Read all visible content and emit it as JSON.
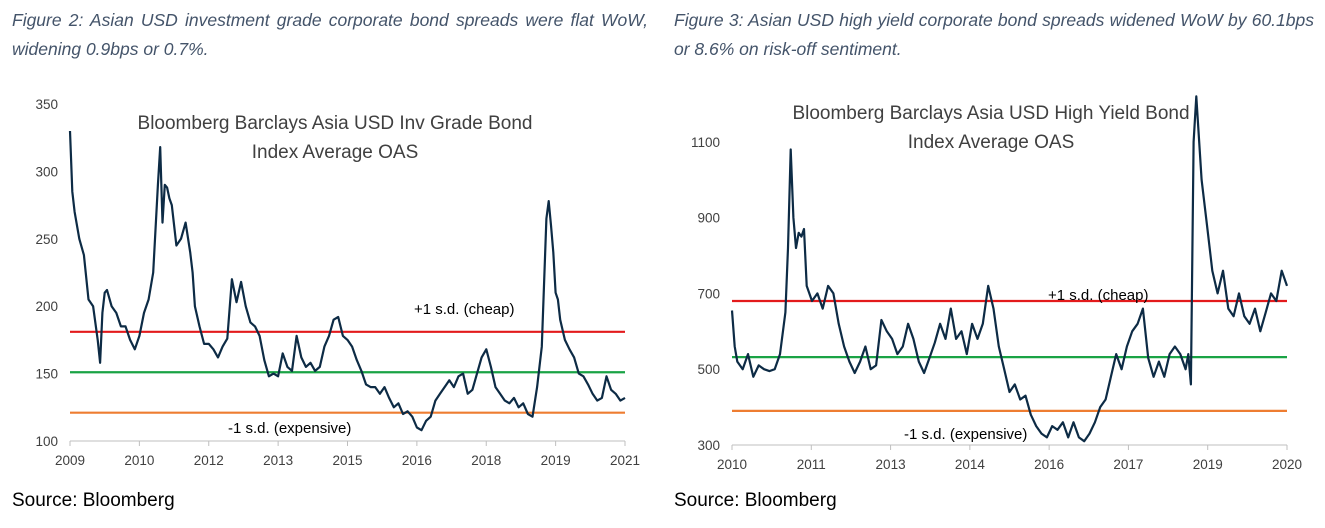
{
  "figures": [
    {
      "caption": "Figure 2: Asian USD investment grade corporate bond spreads were flat WoW, widening 0.9bps or 0.7%.",
      "source": "Source: Bloomberg"
    },
    {
      "caption": "Figure 3: Asian USD high yield corporate bond spreads widened WoW by 60.1bps or 8.6% on risk-off sentiment.",
      "source": "Source: Bloomberg"
    }
  ],
  "chart_data": [
    {
      "type": "line",
      "title": [
        "Bloomberg  Barclays Asia USD Inv Grade Bond",
        "Index Average OAS"
      ],
      "xlabel": "",
      "ylabel": "",
      "xlim": [
        2009.0,
        2021.0
      ],
      "ylim": [
        100,
        350
      ],
      "x_ticks": [
        2009.0,
        2010.33,
        2011.67,
        2013.0,
        2014.33,
        2015.67,
        2017.0,
        2018.33,
        2019.67,
        2021.0
      ],
      "x_tick_labels": [
        "2009",
        "2010",
        "2012",
        "2013",
        "2015",
        "2016",
        "2018",
        "2019",
        "2021"
      ],
      "x_tick_label_positions": [
        2009.0,
        2010.33,
        2011.67,
        2013.0,
        2014.33,
        2015.67,
        2017.0,
        2018.33,
        2019.67
      ],
      "y_ticks": [
        100,
        150,
        200,
        250,
        300,
        350
      ],
      "grid": false,
      "line_color": "#0d2b45",
      "reference_lines": [
        {
          "value": 181,
          "color": "#e31a1c",
          "label": "+1 s.d. (cheap)"
        },
        {
          "value": 151,
          "color": "#1aa345",
          "label": ""
        },
        {
          "value": 121,
          "color": "#ee7d31",
          "label": "-1 s.d. (expensive)"
        }
      ],
      "series": [
        {
          "x": [
            2009.0,
            2009.05,
            2009.1,
            2009.2,
            2009.3,
            2009.4,
            2009.5,
            2009.6,
            2009.65,
            2009.7,
            2009.75,
            2009.8,
            2009.9,
            2010.0,
            2010.1,
            2010.2,
            2010.3,
            2010.4,
            2010.5,
            2010.6,
            2010.7,
            2010.8,
            2010.9,
            2010.95,
            2011.0,
            2011.05,
            2011.1,
            2011.15,
            2011.2,
            2011.3,
            2011.4,
            2011.5,
            2011.6,
            2011.65,
            2011.7,
            2011.8,
            2011.9,
            2012.0,
            2012.1,
            2012.2,
            2012.3,
            2012.4,
            2012.5,
            2012.6,
            2012.7,
            2012.8,
            2012.9,
            2013.0,
            2013.1,
            2013.2,
            2013.3,
            2013.4,
            2013.5,
            2013.6,
            2013.7,
            2013.8,
            2013.9,
            2014.0,
            2014.1,
            2014.2,
            2014.3,
            2014.4,
            2014.5,
            2014.6,
            2014.7,
            2014.8,
            2014.9,
            2015.0,
            2015.1,
            2015.2,
            2015.3,
            2015.4,
            2015.5,
            2015.6,
            2015.7,
            2015.8,
            2015.9,
            2016.0,
            2016.1,
            2016.2,
            2016.3,
            2016.4,
            2016.5,
            2016.6,
            2016.7,
            2016.8,
            2016.9,
            2017.0,
            2017.1,
            2017.2,
            2017.3,
            2017.4,
            2017.5,
            2017.6,
            2017.7,
            2017.8,
            2017.9,
            2018.0,
            2018.1,
            2018.2,
            2018.3,
            2018.4,
            2018.5,
            2018.6,
            2018.7,
            2018.8,
            2018.9,
            2019.0,
            2019.1,
            2019.2,
            2019.3,
            2019.35,
            2019.4,
            2019.45,
            2019.5,
            2019.55,
            2019.6,
            2019.7,
            2019.8,
            2019.9,
            2020.0,
            2020.1,
            2020.2,
            2020.3,
            2020.4,
            2020.5,
            2020.6,
            2020.7,
            2020.8,
            2020.9,
            2021.0
          ],
          "values": [
            330,
            285,
            270,
            250,
            238,
            205,
            200,
            175,
            158,
            195,
            210,
            212,
            200,
            195,
            185,
            185,
            175,
            168,
            178,
            195,
            205,
            225,
            290,
            318,
            262,
            290,
            288,
            280,
            275,
            245,
            250,
            262,
            240,
            225,
            200,
            185,
            172,
            172,
            168,
            162,
            170,
            176,
            220,
            203,
            218,
            200,
            188,
            185,
            178,
            160,
            148,
            150,
            148,
            165,
            155,
            152,
            178,
            162,
            155,
            158,
            152,
            155,
            170,
            178,
            190,
            192,
            178,
            175,
            170,
            160,
            152,
            142,
            140,
            140,
            135,
            140,
            132,
            125,
            128,
            120,
            122,
            118,
            110,
            108,
            115,
            118,
            130,
            135,
            140,
            145,
            140,
            148,
            150,
            135,
            138,
            150,
            162,
            168,
            155,
            140,
            135,
            130,
            128,
            132,
            125,
            128,
            120,
            118,
            140,
            170,
            265,
            278,
            260,
            240,
            210,
            205,
            190,
            175,
            168,
            162,
            150,
            148,
            142,
            135,
            130,
            132,
            148,
            138,
            135,
            130,
            132
          ]
        }
      ]
    },
    {
      "type": "line",
      "title": [
        "Bloomberg  Barclays Asia USD High Yield Bond",
        "Index Average OAS"
      ],
      "xlabel": "",
      "ylabel": "",
      "xlim": [
        2010.0,
        2020.4
      ],
      "ylim": [
        300,
        1200
      ],
      "x_tick_labels": [
        "2010",
        "2011",
        "2013",
        "2014",
        "2016",
        "2017",
        "2019",
        "2020"
      ],
      "x_tick_label_positions": [
        2010.0,
        2011.0,
        2012.0,
        2013.0,
        2014.0,
        2015.0,
        2016.0,
        2017.0
      ],
      "y_ticks": [
        300,
        500,
        700,
        900,
        1100
      ],
      "grid": false,
      "line_color": "#0d2b45",
      "reference_lines": [
        {
          "value": 680,
          "color": "#e31a1c",
          "label": "+1 s.d. (cheap)"
        },
        {
          "value": 532,
          "color": "#1aa345",
          "label": ""
        },
        {
          "value": 390,
          "color": "#ee7d31",
          "label": "-1 s.d. (expensive)"
        }
      ],
      "series": [
        {
          "x": [
            2010.0,
            2010.05,
            2010.1,
            2010.2,
            2010.3,
            2010.4,
            2010.5,
            2010.6,
            2010.7,
            2010.8,
            2010.9,
            2011.0,
            2011.05,
            2011.1,
            2011.15,
            2011.2,
            2011.25,
            2011.3,
            2011.35,
            2011.4,
            2011.5,
            2011.6,
            2011.7,
            2011.8,
            2011.9,
            2012.0,
            2012.1,
            2012.2,
            2012.3,
            2012.4,
            2012.5,
            2012.6,
            2012.7,
            2012.8,
            2012.9,
            2013.0,
            2013.1,
            2013.2,
            2013.3,
            2013.4,
            2013.5,
            2013.6,
            2013.7,
            2013.8,
            2013.9,
            2014.0,
            2014.1,
            2014.2,
            2014.3,
            2014.4,
            2014.5,
            2014.6,
            2014.7,
            2014.8,
            2014.9,
            2015.0,
            2015.1,
            2015.2,
            2015.3,
            2015.4,
            2015.5,
            2015.6,
            2015.7,
            2015.8,
            2015.9,
            2016.0,
            2016.1,
            2016.2,
            2016.3,
            2016.4,
            2016.5,
            2016.6,
            2016.7,
            2016.8,
            2016.9,
            2017.0,
            2017.1,
            2017.2,
            2017.3,
            2017.4,
            2017.5,
            2017.6,
            2017.7,
            2017.8,
            2017.9,
            2018.0,
            2018.1,
            2018.2,
            2018.3,
            2018.4,
            2018.5,
            2018.55,
            2018.6,
            2018.65,
            2018.7,
            2018.8,
            2018.9,
            2019.0,
            2019.1,
            2019.2,
            2019.3,
            2019.4,
            2019.5,
            2019.6,
            2019.7,
            2019.8,
            2019.9,
            2020.0,
            2020.1,
            2020.2,
            2020.3,
            2020.4
          ],
          "values": [
            655,
            560,
            520,
            500,
            540,
            480,
            510,
            500,
            495,
            500,
            540,
            650,
            820,
            1080,
            900,
            820,
            860,
            850,
            870,
            720,
            680,
            700,
            660,
            720,
            700,
            620,
            560,
            520,
            490,
            520,
            560,
            500,
            510,
            630,
            600,
            580,
            540,
            560,
            620,
            580,
            520,
            490,
            530,
            570,
            620,
            580,
            660,
            580,
            600,
            540,
            620,
            580,
            620,
            720,
            660,
            560,
            500,
            440,
            460,
            420,
            430,
            380,
            350,
            330,
            320,
            350,
            340,
            360,
            320,
            360,
            320,
            310,
            330,
            360,
            400,
            420,
            480,
            540,
            500,
            560,
            600,
            620,
            660,
            530,
            480,
            520,
            480,
            540,
            560,
            540,
            500,
            540,
            460,
            1100,
            1220,
            1000,
            880,
            760,
            700,
            760,
            660,
            640,
            700,
            640,
            620,
            660,
            600,
            650,
            700,
            680,
            760,
            720
          ]
        }
      ]
    }
  ]
}
